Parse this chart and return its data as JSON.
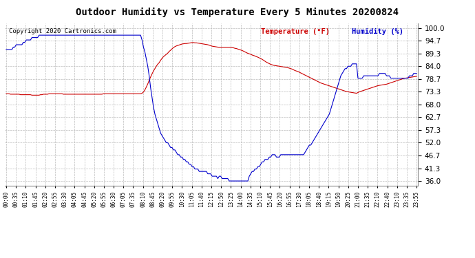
{
  "title": "Outdoor Humidity vs Temperature Every 5 Minutes 20200824",
  "copyright_text": "Copyright 2020 Cartronics.com",
  "temp_label": "Temperature (°F)",
  "humidity_label": "Humidity (%)",
  "temp_color": "#cc0000",
  "humidity_color": "#0000cc",
  "background_color": "#ffffff",
  "plot_bg_color": "#ffffff",
  "grid_color": "#bbbbbb",
  "yticks": [
    36.0,
    41.3,
    46.7,
    52.0,
    57.3,
    62.7,
    68.0,
    73.3,
    78.7,
    84.0,
    89.3,
    94.7,
    100.0
  ],
  "ylim": [
    34.0,
    102.0
  ],
  "n_points": 288,
  "humidity_data": [
    91,
    91,
    91,
    91,
    91,
    92,
    92,
    93,
    93,
    93,
    93,
    93,
    94,
    94,
    95,
    95,
    95,
    95,
    96,
    96,
    96,
    96,
    96,
    97,
    97,
    97,
    97,
    97,
    97,
    97,
    97,
    97,
    97,
    97,
    97,
    97,
    97,
    97,
    97,
    97,
    97,
    97,
    97,
    97,
    97,
    97,
    97,
    97,
    97,
    97,
    97,
    97,
    97,
    97,
    97,
    97,
    97,
    97,
    97,
    97,
    97,
    97,
    97,
    97,
    97,
    97,
    97,
    97,
    97,
    97,
    97,
    97,
    97,
    97,
    97,
    97,
    97,
    97,
    97,
    97,
    97,
    97,
    97,
    97,
    97,
    97,
    97,
    97,
    97,
    97,
    97,
    97,
    97,
    97,
    97,
    95,
    92,
    90,
    87,
    84,
    80,
    75,
    71,
    67,
    64,
    62,
    60,
    58,
    56,
    55,
    54,
    53,
    52,
    52,
    51,
    50,
    50,
    49,
    49,
    48,
    47,
    47,
    46,
    46,
    45,
    45,
    44,
    44,
    43,
    43,
    42,
    42,
    41,
    41,
    41,
    40,
    40,
    40,
    40,
    40,
    40,
    39,
    39,
    39,
    38,
    38,
    38,
    38,
    37,
    38,
    38,
    37,
    37,
    37,
    37,
    37,
    36,
    36,
    36,
    36,
    36,
    36,
    36,
    36,
    36,
    36,
    36,
    36,
    36,
    36,
    38,
    39,
    40,
    40,
    41,
    41,
    42,
    42,
    43,
    44,
    44,
    45,
    45,
    45,
    46,
    46,
    47,
    47,
    47,
    46,
    46,
    46,
    47,
    47,
    47,
    47,
    47,
    47,
    47,
    47,
    47,
    47,
    47,
    47,
    47,
    47,
    47,
    47,
    47,
    48,
    49,
    50,
    51,
    51,
    52,
    53,
    54,
    55,
    56,
    57,
    58,
    59,
    60,
    61,
    62,
    63,
    64,
    66,
    68,
    70,
    72,
    74,
    76,
    78,
    80,
    81,
    82,
    83,
    83,
    84,
    84,
    84,
    85,
    85,
    85,
    85,
    79,
    79,
    79,
    79,
    80,
    80,
    80,
    80,
    80,
    80,
    80,
    80,
    80,
    80,
    80,
    81,
    81,
    81,
    81,
    81,
    80,
    80,
    80,
    79,
    79,
    79,
    79,
    79,
    79,
    79,
    79,
    79,
    79,
    79,
    79,
    79,
    80,
    80,
    80,
    81,
    81,
    81
  ],
  "temp_data": [
    72.5,
    72.5,
    72.5,
    72.3,
    72.3,
    72.3,
    72.3,
    72.3,
    72.3,
    72.3,
    72.1,
    72.1,
    72.1,
    72.1,
    72.1,
    72.1,
    72.1,
    72.1,
    71.9,
    71.9,
    71.9,
    71.9,
    71.9,
    71.9,
    72.1,
    72.1,
    72.3,
    72.3,
    72.3,
    72.3,
    72.5,
    72.5,
    72.5,
    72.5,
    72.5,
    72.5,
    72.5,
    72.5,
    72.5,
    72.5,
    72.3,
    72.3,
    72.3,
    72.3,
    72.3,
    72.3,
    72.3,
    72.3,
    72.3,
    72.3,
    72.3,
    72.3,
    72.3,
    72.3,
    72.3,
    72.3,
    72.3,
    72.3,
    72.3,
    72.3,
    72.3,
    72.3,
    72.3,
    72.3,
    72.3,
    72.3,
    72.3,
    72.3,
    72.5,
    72.5,
    72.5,
    72.5,
    72.5,
    72.5,
    72.5,
    72.5,
    72.5,
    72.5,
    72.5,
    72.5,
    72.5,
    72.5,
    72.5,
    72.5,
    72.5,
    72.5,
    72.5,
    72.5,
    72.5,
    72.5,
    72.5,
    72.5,
    72.5,
    72.5,
    72.5,
    72.7,
    73.2,
    74.1,
    75.3,
    76.6,
    78.1,
    79.5,
    80.8,
    82.0,
    83.0,
    84.0,
    84.9,
    85.5,
    86.5,
    87.3,
    88.0,
    88.5,
    89.0,
    89.5,
    90.2,
    90.7,
    91.3,
    91.8,
    92.2,
    92.5,
    92.7,
    92.9,
    93.1,
    93.3,
    93.4,
    93.5,
    93.5,
    93.6,
    93.7,
    93.8,
    93.9,
    93.9,
    93.8,
    93.8,
    93.7,
    93.6,
    93.5,
    93.4,
    93.3,
    93.2,
    93.1,
    93.0,
    92.8,
    92.6,
    92.4,
    92.3,
    92.2,
    92.1,
    92.0,
    91.9,
    91.9,
    91.9,
    91.9,
    91.9,
    91.9,
    91.9,
    91.9,
    91.9,
    91.8,
    91.7,
    91.5,
    91.4,
    91.2,
    91.0,
    90.8,
    90.6,
    90.3,
    90.0,
    89.7,
    89.4,
    89.2,
    89.0,
    88.7,
    88.5,
    88.3,
    88.0,
    87.8,
    87.5,
    87.2,
    86.9,
    86.5,
    86.1,
    85.7,
    85.4,
    85.1,
    84.8,
    84.6,
    84.4,
    84.3,
    84.2,
    84.1,
    84.0,
    83.9,
    83.8,
    83.7,
    83.6,
    83.5,
    83.4,
    83.2,
    83.0,
    82.8,
    82.5,
    82.2,
    82.0,
    81.8,
    81.5,
    81.2,
    80.9,
    80.6,
    80.3,
    80.0,
    79.7,
    79.4,
    79.1,
    78.8,
    78.5,
    78.2,
    77.9,
    77.6,
    77.3,
    77.0,
    76.8,
    76.6,
    76.4,
    76.2,
    76.0,
    75.8,
    75.6,
    75.4,
    75.2,
    75.0,
    74.8,
    74.6,
    74.4,
    74.2,
    74.0,
    73.8,
    73.6,
    73.4,
    73.3,
    73.2,
    73.1,
    73.0,
    72.9,
    72.8,
    72.7,
    73.0,
    73.3,
    73.5,
    73.7,
    73.9,
    74.1,
    74.3,
    74.5,
    74.7,
    74.9,
    75.1,
    75.3,
    75.5,
    75.7,
    75.9,
    76.0,
    76.1,
    76.2,
    76.3,
    76.4,
    76.5,
    76.7,
    76.9,
    77.1,
    77.3,
    77.5,
    77.7,
    77.9,
    78.1,
    78.3,
    78.5,
    78.7,
    78.9,
    79.0,
    79.1,
    79.2,
    79.3,
    79.4,
    79.5,
    79.6,
    79.7,
    79.8
  ],
  "xtick_labels": [
    "00:00",
    "00:35",
    "01:10",
    "01:45",
    "02:20",
    "02:55",
    "03:30",
    "04:05",
    "04:45",
    "05:20",
    "05:55",
    "06:30",
    "07:05",
    "07:35",
    "08:10",
    "08:45",
    "09:20",
    "09:55",
    "10:30",
    "11:05",
    "11:40",
    "12:15",
    "12:50",
    "13:25",
    "14:00",
    "14:35",
    "15:10",
    "15:45",
    "16:20",
    "16:55",
    "17:30",
    "18:05",
    "18:40",
    "19:15",
    "19:50",
    "20:25",
    "21:00",
    "21:35",
    "22:10",
    "22:40",
    "23:10",
    "23:35",
    "23:55"
  ]
}
